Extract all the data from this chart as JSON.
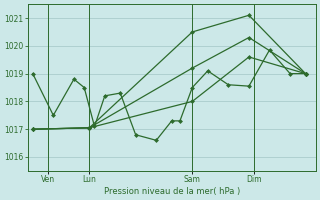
{
  "bg_color": "#cce8e8",
  "grid_color": "#aacccc",
  "line_color": "#2d6b2d",
  "ylim": [
    1015.5,
    1021.5
  ],
  "xlim": [
    0,
    28
  ],
  "xlabel": "Pression niveau de la mer( hPa )",
  "yticks": [
    1016,
    1017,
    1018,
    1019,
    1020,
    1021
  ],
  "xtick_positions": [
    2,
    6,
    16,
    22
  ],
  "xtick_labels": [
    "Ven",
    "Lun",
    "Sam",
    "Dim"
  ],
  "vlines": [
    2,
    6,
    16,
    22
  ],
  "line1_x": [
    0.5,
    2.5,
    4.5,
    5.5,
    6.5,
    7.5,
    9.0,
    10.5,
    12.5,
    14.0,
    14.8,
    16.0,
    17.5,
    19.5,
    21.5,
    23.5,
    25.5,
    27.0
  ],
  "line1_y": [
    1019.0,
    1017.5,
    1018.8,
    1018.5,
    1017.1,
    1018.2,
    1018.3,
    1016.8,
    1016.6,
    1017.3,
    1017.3,
    1018.5,
    1019.1,
    1018.6,
    1018.55,
    1019.85,
    1019.0,
    1019.0
  ],
  "line2_x": [
    0.5,
    6.0,
    16.0,
    21.5,
    27.0
  ],
  "line2_y": [
    1017.0,
    1017.05,
    1018.0,
    1019.6,
    1019.0
  ],
  "line3_x": [
    0.5,
    6.0,
    16.0,
    21.5,
    27.0
  ],
  "line3_y": [
    1017.0,
    1017.05,
    1019.2,
    1020.3,
    1019.0
  ],
  "line4_x": [
    0.5,
    6.0,
    16.0,
    21.5,
    27.0
  ],
  "line4_y": [
    1017.0,
    1017.05,
    1020.5,
    1021.1,
    1019.0
  ]
}
